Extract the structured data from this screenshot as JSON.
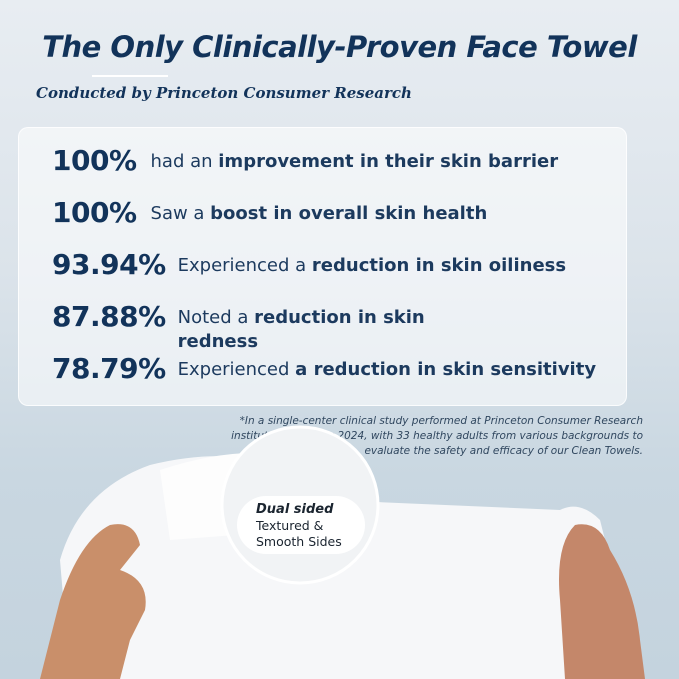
{
  "header": {
    "title": "The Only Clinically-Proven Face Towel",
    "subtitle": "Conducted by Princeton Consumer Research"
  },
  "stats": [
    {
      "value": "100%",
      "pre": "had an ",
      "bold": "improvement in their skin barrier",
      "post": ""
    },
    {
      "value": "100%",
      "pre": "Saw a ",
      "bold": "boost in overall skin health",
      "post": ""
    },
    {
      "value": "93.94%",
      "pre": "Experienced a ",
      "bold": "reduction in skin oiliness",
      "post": ""
    },
    {
      "value": "87.88%",
      "pre": "Noted a ",
      "bold": "reduction in skin redness",
      "post": ""
    },
    {
      "value": "78.79%",
      "pre": "Experienced ",
      "bold": "a reduction in skin sensitivity",
      "post": ""
    }
  ],
  "footnote": "*In a single-center clinical study performed at Princeton Consumer Research institute on January 2024, with 33 healthy adults from various backgrounds to evaluate the safety and efficacy of our Clean Towels.",
  "badge": {
    "heading": "Dual sided",
    "line1": "Textured &",
    "line2": "Smooth Sides"
  },
  "colors": {
    "primary": "#12335a",
    "skin": "#c98f6a"
  }
}
